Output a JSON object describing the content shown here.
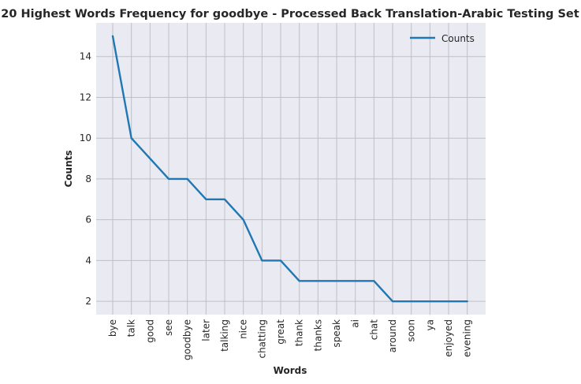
{
  "chart_data": {
    "type": "line",
    "title": "20 Highest Words Frequency for goodbye - Processed Back Translation-Arabic Testing Set",
    "xlabel": "Words",
    "ylabel": "Counts",
    "categories": [
      "bye",
      "talk",
      "good",
      "see",
      "goodbye",
      "later",
      "talking",
      "nice",
      "chatting",
      "great",
      "thank",
      "thanks",
      "speak",
      "ai",
      "chat",
      "around",
      "soon",
      "ya",
      "enjoyed",
      "evening"
    ],
    "series": [
      {
        "name": "Counts",
        "values": [
          15,
          10,
          9,
          8,
          8,
          7,
          7,
          6,
          4,
          4,
          3,
          3,
          3,
          3,
          3,
          2,
          2,
          2,
          2,
          2
        ]
      }
    ],
    "ylim": [
      1.35,
      15.65
    ],
    "yticks": [
      2,
      4,
      6,
      8,
      10,
      12,
      14
    ],
    "grid": true,
    "legend_position": "top-right",
    "line_color": "#1f77b4",
    "background_color": "#eaeaf2",
    "grid_color": "#bfbfc6"
  }
}
